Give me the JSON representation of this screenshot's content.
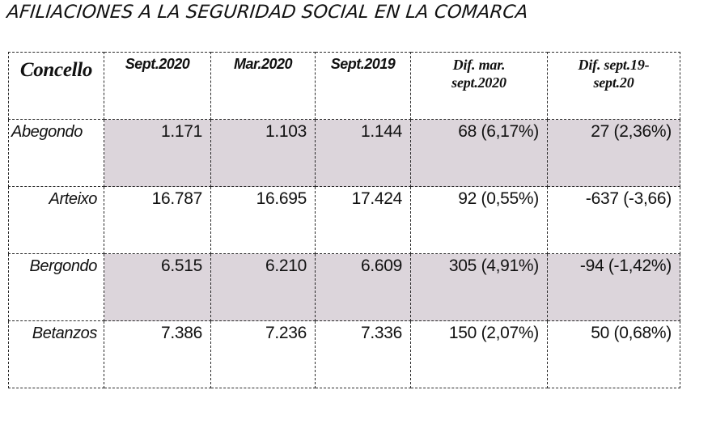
{
  "title": "AFILIACIONES A LA SEGURIDAD SOCIAL EN LA COMARCA",
  "table": {
    "headers": {
      "concello": "Concello",
      "sept2020": "Sept.2020",
      "mar2020": "Mar.2020",
      "sept2019": "Sept.2019",
      "dif_mar_line1": "Dif. mar.",
      "dif_mar_line2": "sept.2020",
      "dif_sept_line1": "Dif. sept.19-",
      "dif_sept_line2": "sept.20"
    },
    "rows": [
      {
        "concello": "Abegondo",
        "sept2020": "1.171",
        "mar2020": "1.103",
        "sept2019": "1.144",
        "dif_mar": "68 (6,17%)",
        "dif_sept": "27 (2,36%)"
      },
      {
        "concello": "Arteixo",
        "sept2020": "16.787",
        "mar2020": "16.695",
        "sept2019": "17.424",
        "dif_mar": "92 (0,55%)",
        "dif_sept": "-637 (-3,66)"
      },
      {
        "concello": "Bergondo",
        "sept2020": "6.515",
        "mar2020": "6.210",
        "sept2019": "6.609",
        "dif_mar": "305 (4,91%)",
        "dif_sept": "-94 (-1,42%)"
      },
      {
        "concello": "Betanzos",
        "sept2020": "7.386",
        "mar2020": "7.236",
        "sept2019": "7.336",
        "dif_mar": "150 (2,07%)",
        "dif_sept": "50 (0,68%)"
      }
    ]
  }
}
